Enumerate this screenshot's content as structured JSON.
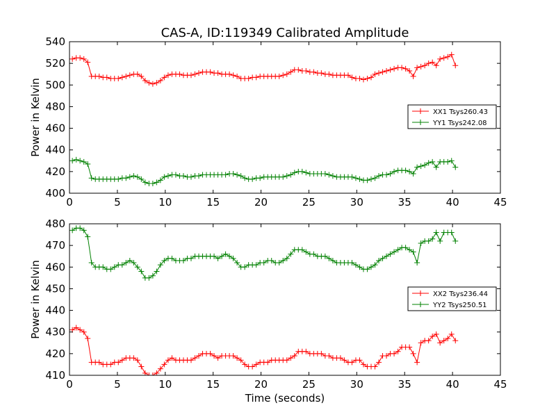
{
  "title": "CAS-A, ID:119349 Calibrated Amplitude",
  "chart_data": [
    {
      "type": "line",
      "xlabel": "",
      "ylabel": "Power in Kelvin",
      "xlim": [
        0,
        45
      ],
      "ylim": [
        400,
        540
      ],
      "xticks": [
        "0",
        "5",
        "10",
        "15",
        "20",
        "25",
        "30",
        "35",
        "40",
        "45"
      ],
      "yticks": [
        "400",
        "420",
        "440",
        "460",
        "480",
        "500",
        "520",
        "540"
      ],
      "grid": false,
      "legend_position": "center-right",
      "series": [
        {
          "name": "XX1 Tsys260.43",
          "color": "#ff0000",
          "x": [
            0.3,
            0.7,
            1.1,
            1.5,
            1.9,
            2.3,
            2.7,
            3.1,
            3.5,
            3.9,
            4.3,
            4.7,
            5.1,
            5.5,
            5.9,
            6.3,
            6.7,
            7.1,
            7.5,
            7.9,
            8.3,
            8.7,
            9.1,
            9.5,
            9.9,
            10.3,
            10.7,
            11.1,
            11.5,
            11.9,
            12.3,
            12.7,
            13.1,
            13.5,
            13.9,
            14.3,
            14.7,
            15.1,
            15.5,
            15.9,
            16.3,
            16.7,
            17.1,
            17.5,
            17.9,
            18.3,
            18.7,
            19.1,
            19.5,
            19.9,
            20.3,
            20.7,
            21.1,
            21.5,
            21.9,
            22.3,
            22.7,
            23.1,
            23.5,
            23.9,
            24.3,
            24.7,
            25.1,
            25.5,
            25.9,
            26.3,
            26.7,
            27.1,
            27.5,
            27.9,
            28.3,
            28.7,
            29.1,
            29.5,
            29.9,
            30.3,
            30.7,
            31.1,
            31.5,
            31.9,
            32.3,
            32.7,
            33.1,
            33.5,
            33.9,
            34.3,
            34.7,
            35.1,
            35.5,
            35.9,
            36.3,
            36.7,
            37.1,
            37.5,
            37.9,
            38.3,
            38.7,
            39.1,
            39.5,
            39.9,
            40.3
          ],
          "y": [
            524,
            525,
            525,
            524,
            521,
            508,
            508,
            508,
            507,
            507,
            506,
            506,
            506,
            507,
            508,
            509,
            510,
            510,
            508,
            504,
            502,
            501,
            502,
            504,
            507,
            509,
            510,
            510,
            510,
            509,
            509,
            509,
            510,
            511,
            512,
            512,
            512,
            511,
            511,
            510,
            510,
            510,
            509,
            508,
            506,
            506,
            506,
            507,
            507,
            508,
            508,
            508,
            508,
            508,
            508,
            509,
            510,
            512,
            514,
            514,
            513,
            513,
            512,
            512,
            511,
            511,
            510,
            510,
            509,
            509,
            509,
            509,
            509,
            507,
            506,
            506,
            505,
            506,
            507,
            510,
            511,
            512,
            513,
            514,
            515,
            516,
            516,
            515,
            513,
            508,
            516,
            517,
            518,
            520,
            521,
            518,
            524,
            525,
            526,
            528,
            518
          ]
        },
        {
          "name": "YY1 Tsys242.08",
          "color": "#008000",
          "x": [
            0.3,
            0.7,
            1.1,
            1.5,
            1.9,
            2.3,
            2.7,
            3.1,
            3.5,
            3.9,
            4.3,
            4.7,
            5.1,
            5.5,
            5.9,
            6.3,
            6.7,
            7.1,
            7.5,
            7.9,
            8.3,
            8.7,
            9.1,
            9.5,
            9.9,
            10.3,
            10.7,
            11.1,
            11.5,
            11.9,
            12.3,
            12.7,
            13.1,
            13.5,
            13.9,
            14.3,
            14.7,
            15.1,
            15.5,
            15.9,
            16.3,
            16.7,
            17.1,
            17.5,
            17.9,
            18.3,
            18.7,
            19.1,
            19.5,
            19.9,
            20.3,
            20.7,
            21.1,
            21.5,
            21.9,
            22.3,
            22.7,
            23.1,
            23.5,
            23.9,
            24.3,
            24.7,
            25.1,
            25.5,
            25.9,
            26.3,
            26.7,
            27.1,
            27.5,
            27.9,
            28.3,
            28.7,
            29.1,
            29.5,
            29.9,
            30.3,
            30.7,
            31.1,
            31.5,
            31.9,
            32.3,
            32.7,
            33.1,
            33.5,
            33.9,
            34.3,
            34.7,
            35.1,
            35.5,
            35.9,
            36.3,
            36.7,
            37.1,
            37.5,
            37.9,
            38.3,
            38.7,
            39.1,
            39.5,
            39.9,
            40.3
          ],
          "y": [
            430,
            431,
            430,
            429,
            427,
            414,
            413,
            413,
            413,
            413,
            413,
            413,
            413,
            414,
            414,
            415,
            416,
            415,
            413,
            410,
            409,
            409,
            410,
            412,
            415,
            416,
            417,
            417,
            416,
            416,
            415,
            415,
            416,
            416,
            417,
            417,
            417,
            417,
            417,
            417,
            417,
            418,
            418,
            417,
            416,
            414,
            413,
            413,
            414,
            414,
            415,
            415,
            415,
            415,
            415,
            415,
            416,
            417,
            419,
            420,
            420,
            419,
            418,
            418,
            418,
            418,
            418,
            417,
            416,
            415,
            415,
            415,
            415,
            415,
            414,
            413,
            412,
            412,
            413,
            414,
            416,
            417,
            417,
            418,
            420,
            421,
            421,
            421,
            420,
            418,
            424,
            425,
            426,
            428,
            429,
            424,
            429,
            429,
            429,
            430,
            424
          ]
        }
      ]
    },
    {
      "type": "line",
      "xlabel": "Time (seconds)",
      "ylabel": "Power in Kelvin",
      "xlim": [
        0,
        45
      ],
      "ylim": [
        410,
        480
      ],
      "xticks": [
        "0",
        "5",
        "10",
        "15",
        "20",
        "25",
        "30",
        "35",
        "40",
        "45"
      ],
      "yticks": [
        "410",
        "420",
        "430",
        "440",
        "450",
        "460",
        "470",
        "480"
      ],
      "grid": false,
      "legend_position": "center-right",
      "series": [
        {
          "name": "XX2 Tsys236.44",
          "color": "#ff0000",
          "x": [
            0.3,
            0.7,
            1.1,
            1.5,
            1.9,
            2.3,
            2.7,
            3.1,
            3.5,
            3.9,
            4.3,
            4.7,
            5.1,
            5.5,
            5.9,
            6.3,
            6.7,
            7.1,
            7.5,
            7.9,
            8.3,
            8.7,
            9.1,
            9.5,
            9.9,
            10.3,
            10.7,
            11.1,
            11.5,
            11.9,
            12.3,
            12.7,
            13.1,
            13.5,
            13.9,
            14.3,
            14.7,
            15.1,
            15.5,
            15.9,
            16.3,
            16.7,
            17.1,
            17.5,
            17.9,
            18.3,
            18.7,
            19.1,
            19.5,
            19.9,
            20.3,
            20.7,
            21.1,
            21.5,
            21.9,
            22.3,
            22.7,
            23.1,
            23.5,
            23.9,
            24.3,
            24.7,
            25.1,
            25.5,
            25.9,
            26.3,
            26.7,
            27.1,
            27.5,
            27.9,
            28.3,
            28.7,
            29.1,
            29.5,
            29.9,
            30.3,
            30.7,
            31.1,
            31.5,
            31.9,
            32.3,
            32.7,
            33.1,
            33.5,
            33.9,
            34.3,
            34.7,
            35.1,
            35.5,
            35.9,
            36.3,
            36.7,
            37.1,
            37.5,
            37.9,
            38.3,
            38.7,
            39.1,
            39.5,
            39.9,
            40.3
          ],
          "y": [
            431,
            432,
            431,
            430,
            427,
            416,
            416,
            416,
            415,
            415,
            415,
            416,
            416,
            417,
            418,
            418,
            418,
            417,
            414,
            411,
            410,
            410,
            411,
            413,
            415,
            417,
            418,
            417,
            417,
            417,
            417,
            417,
            418,
            419,
            420,
            420,
            420,
            419,
            418,
            419,
            419,
            419,
            419,
            418,
            417,
            415,
            414,
            414,
            415,
            416,
            416,
            416,
            417,
            417,
            417,
            417,
            417,
            418,
            419,
            421,
            421,
            421,
            420,
            420,
            420,
            420,
            419,
            419,
            418,
            418,
            418,
            417,
            416,
            416,
            417,
            417,
            415,
            414,
            414,
            414,
            416,
            419,
            419,
            420,
            420,
            421,
            423,
            423,
            423,
            420,
            416,
            425,
            426,
            426,
            428,
            429,
            425,
            426,
            427,
            429,
            426
          ]
        },
        {
          "name": "YY2 Tsys250.51",
          "color": "#008000",
          "x": [
            0.3,
            0.7,
            1.1,
            1.5,
            1.9,
            2.3,
            2.7,
            3.1,
            3.5,
            3.9,
            4.3,
            4.7,
            5.1,
            5.5,
            5.9,
            6.3,
            6.7,
            7.1,
            7.5,
            7.9,
            8.3,
            8.7,
            9.1,
            9.5,
            9.9,
            10.3,
            10.7,
            11.1,
            11.5,
            11.9,
            12.3,
            12.7,
            13.1,
            13.5,
            13.9,
            14.3,
            14.7,
            15.1,
            15.5,
            15.9,
            16.3,
            16.7,
            17.1,
            17.5,
            17.9,
            18.3,
            18.7,
            19.1,
            19.5,
            19.9,
            20.3,
            20.7,
            21.1,
            21.5,
            21.9,
            22.3,
            22.7,
            23.1,
            23.5,
            23.9,
            24.3,
            24.7,
            25.1,
            25.5,
            25.9,
            26.3,
            26.7,
            27.1,
            27.5,
            27.9,
            28.3,
            28.7,
            29.1,
            29.5,
            29.9,
            30.3,
            30.7,
            31.1,
            31.5,
            31.9,
            32.3,
            32.7,
            33.1,
            33.5,
            33.9,
            34.3,
            34.7,
            35.1,
            35.5,
            35.9,
            36.3,
            36.7,
            37.1,
            37.5,
            37.9,
            38.3,
            38.7,
            39.1,
            39.5,
            39.9,
            40.3
          ],
          "y": [
            477,
            478,
            478,
            477,
            474,
            462,
            460,
            460,
            460,
            459,
            459,
            460,
            461,
            461,
            462,
            463,
            462,
            460,
            458,
            455,
            455,
            456,
            458,
            461,
            463,
            464,
            464,
            463,
            463,
            463,
            464,
            464,
            465,
            465,
            465,
            465,
            465,
            465,
            464,
            465,
            466,
            465,
            464,
            462,
            460,
            460,
            461,
            461,
            461,
            462,
            462,
            463,
            463,
            462,
            462,
            463,
            464,
            466,
            468,
            468,
            468,
            467,
            466,
            466,
            465,
            465,
            465,
            464,
            463,
            462,
            462,
            462,
            462,
            462,
            461,
            460,
            459,
            459,
            460,
            461,
            463,
            464,
            465,
            466,
            467,
            468,
            469,
            469,
            468,
            467,
            462,
            471,
            472,
            472,
            473,
            476,
            472,
            476,
            476,
            476,
            472
          ]
        }
      ]
    }
  ]
}
